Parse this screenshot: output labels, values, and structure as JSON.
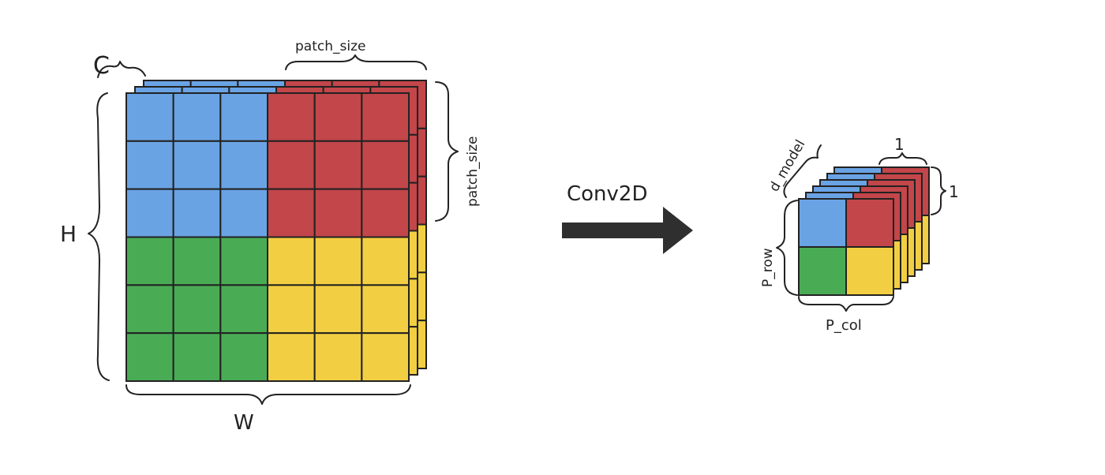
{
  "input_tensor": {
    "rows": 6,
    "cols": 6,
    "channels": 3,
    "patch_size": 3,
    "patch_colors": {
      "top_left": "#6aa3e4",
      "top_right": "#c2464a",
      "bottom_left": "#4aab55",
      "bottom_right": "#f2cf42"
    },
    "labels": {
      "channels": "C",
      "height": "H",
      "width": "W",
      "patch_top": "patch_size",
      "patch_side": "patch_size"
    }
  },
  "operation": {
    "label": "Conv2D",
    "arrow_color": "#2f2f2f"
  },
  "output_tensor": {
    "rows": 2,
    "cols": 2,
    "depth_layers": 6,
    "labels": {
      "depth": "d_model",
      "rows": "P_row",
      "cols": "P_col",
      "patch_w": "1",
      "patch_h": "1"
    }
  }
}
